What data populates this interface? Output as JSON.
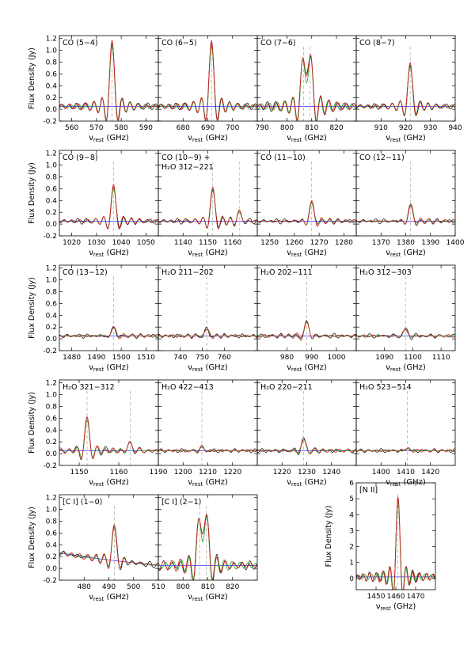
{
  "figure": {
    "ylabel": "Flux Density (Jy)",
    "xlabel_prefix": "ν",
    "xlabel_sub": "rest",
    "xlabel_unit": " (GHz)",
    "line_colors": {
      "black": "#000000",
      "red": "#d62020",
      "green": "#2fa02f",
      "blue": "#3333ff",
      "dash": "#999999"
    }
  },
  "chart_data": [
    {
      "id": "co54",
      "title": "CO (5−4)",
      "type": "line",
      "xlim": [
        555,
        595
      ],
      "ylim": [
        -0.2,
        1.25
      ],
      "xticks": [
        560,
        570,
        580,
        590
      ],
      "yticks": [
        -0.2,
        0.0,
        0.2,
        0.4,
        0.6,
        0.8,
        1.0,
        1.2
      ],
      "lines": [
        {
          "center": 576.3,
          "peak": 1.1
        }
      ],
      "continuum": [
        0.05,
        0.05
      ]
    },
    {
      "id": "co65",
      "title": "CO (6−5)",
      "type": "line",
      "xlim": [
        670,
        710
      ],
      "ylim": [
        -0.2,
        1.25
      ],
      "xticks": [
        680,
        690,
        700
      ],
      "yticks": [
        -0.2,
        0.0,
        0.2,
        0.4,
        0.6,
        0.8,
        1.0,
        1.2
      ],
      "lines": [
        {
          "center": 691.5,
          "peak": 1.1
        }
      ],
      "continuum": [
        0.05,
        0.05
      ]
    },
    {
      "id": "co76",
      "title": "CO (7−6)",
      "type": "line",
      "xlim": [
        788,
        828
      ],
      "ylim": [
        -0.2,
        1.25
      ],
      "xticks": [
        790,
        800,
        810,
        820
      ],
      "yticks": [
        -0.2,
        0.0,
        0.2,
        0.4,
        0.6,
        0.8,
        1.0,
        1.2
      ],
      "lines": [
        {
          "center": 806.7,
          "peak": 1.0
        },
        {
          "center": 809.3,
          "peak": 1.05
        }
      ],
      "continuum": [
        0.05,
        0.05
      ]
    },
    {
      "id": "co87",
      "title": "CO (8−7)",
      "type": "line",
      "xlim": [
        900,
        940
      ],
      "ylim": [
        -0.2,
        1.25
      ],
      "xticks": [
        910,
        920,
        930,
        940
      ],
      "yticks": [
        -0.2,
        0.0,
        0.2,
        0.4,
        0.6,
        0.8,
        1.0,
        1.2
      ],
      "lines": [
        {
          "center": 921.8,
          "peak": 0.72
        }
      ],
      "continuum": [
        0.05,
        0.05
      ]
    },
    {
      "id": "co98",
      "title": "CO (9−8)",
      "type": "line",
      "xlim": [
        1015,
        1055
      ],
      "ylim": [
        -0.2,
        1.25
      ],
      "xticks": [
        1020,
        1030,
        1040,
        1050
      ],
      "yticks": [
        -0.2,
        0.0,
        0.2,
        0.4,
        0.6,
        0.8,
        1.0,
        1.2
      ],
      "lines": [
        {
          "center": 1036.9,
          "peak": 0.6
        }
      ],
      "continuum": [
        0.05,
        0.05
      ]
    },
    {
      "id": "co109",
      "title": "CO (10−9) +",
      "title2": "H₂O 312−221",
      "type": "line",
      "xlim": [
        1130,
        1170
      ],
      "ylim": [
        -0.2,
        1.25
      ],
      "xticks": [
        1140,
        1150,
        1160
      ],
      "yticks": [
        -0.2,
        0.0,
        0.2,
        0.4,
        0.6,
        0.8,
        1.0,
        1.2
      ],
      "lines": [
        {
          "center": 1152.0,
          "peak": 0.55
        },
        {
          "center": 1162.9,
          "peak": 0.15
        }
      ],
      "continuum": [
        0.05,
        0.05
      ]
    },
    {
      "id": "co1110",
      "title": "CO (11−10)",
      "type": "line",
      "xlim": [
        1245,
        1285
      ],
      "ylim": [
        -0.2,
        1.25
      ],
      "xticks": [
        1250,
        1260,
        1270,
        1280
      ],
      "yticks": [
        -0.2,
        0.0,
        0.2,
        0.4,
        0.6,
        0.8,
        1.0,
        1.2
      ],
      "lines": [
        {
          "center": 1267.0,
          "peak": 0.33
        }
      ],
      "continuum": [
        0.05,
        0.05
      ]
    },
    {
      "id": "co1211",
      "title": "CO (12−11)",
      "type": "line",
      "xlim": [
        1360,
        1400
      ],
      "ylim": [
        -0.2,
        1.25
      ],
      "xticks": [
        1370,
        1380,
        1390,
        1400
      ],
      "yticks": [
        -0.2,
        0.0,
        0.2,
        0.4,
        0.6,
        0.8,
        1.0,
        1.2
      ],
      "lines": [
        {
          "center": 1382.0,
          "peak": 0.28
        }
      ],
      "continuum": [
        0.05,
        0.05
      ]
    },
    {
      "id": "co1312",
      "title": "CO (13−12)",
      "type": "line",
      "xlim": [
        1475,
        1515
      ],
      "ylim": [
        -0.2,
        1.25
      ],
      "xticks": [
        1480,
        1490,
        1500,
        1510
      ],
      "yticks": [
        -0.2,
        0.0,
        0.2,
        0.4,
        0.6,
        0.8,
        1.0,
        1.2
      ],
      "lines": [
        {
          "center": 1496.9,
          "peak": 0.15
        }
      ],
      "continuum": [
        0.05,
        0.05
      ]
    },
    {
      "id": "h2o211202",
      "title": "H₂O 211−202",
      "type": "line",
      "xlim": [
        730,
        775
      ],
      "ylim": [
        -0.2,
        1.25
      ],
      "xticks": [
        740,
        750,
        760
      ],
      "yticks": [
        -0.2,
        0.0,
        0.2,
        0.4,
        0.6,
        0.8,
        1.0,
        1.2
      ],
      "lines": [
        {
          "center": 752.0,
          "peak": 0.12
        }
      ],
      "continuum": [
        0.05,
        0.05
      ]
    },
    {
      "id": "h2o202111",
      "title": "H₂O 202−111",
      "type": "line",
      "xlim": [
        968,
        1008
      ],
      "ylim": [
        -0.2,
        1.25
      ],
      "xticks": [
        980,
        990,
        1000
      ],
      "yticks": [
        -0.2,
        0.0,
        0.2,
        0.4,
        0.6,
        0.8,
        1.0,
        1.2
      ],
      "lines": [
        {
          "center": 988.0,
          "peak": 0.25
        }
      ],
      "continuum": [
        0.05,
        0.05
      ]
    },
    {
      "id": "h2o312303",
      "title": "H₂O 312−303",
      "type": "line",
      "xlim": [
        1080,
        1115
      ],
      "ylim": [
        -0.2,
        1.25
      ],
      "xticks": [
        1090,
        1100,
        1110
      ],
      "yticks": [
        -0.2,
        0.0,
        0.2,
        0.4,
        0.6,
        0.8,
        1.0,
        1.2
      ],
      "lines": [
        {
          "center": 1097.4,
          "peak": 0.12
        }
      ],
      "continuum": [
        0.05,
        0.05
      ]
    },
    {
      "id": "h2o321312",
      "title": "H₂O 321−312",
      "type": "line",
      "xlim": [
        1145,
        1170
      ],
      "ylim": [
        -0.2,
        1.25
      ],
      "xticks": [
        1150,
        1160
      ],
      "yticks": [
        -0.2,
        0.0,
        0.2,
        0.4,
        0.6,
        0.8,
        1.0,
        1.2
      ],
      "lines": [
        {
          "center": 1152.0,
          "peak": 0.55
        },
        {
          "center": 1162.9,
          "peak": 0.15
        }
      ],
      "continuum": [
        0.05,
        0.05
      ]
    },
    {
      "id": "h2o422413",
      "title": "H₂O 422−413",
      "type": "line",
      "xlim": [
        1190,
        1230
      ],
      "ylim": [
        -0.2,
        1.25
      ],
      "xticks": [
        1190,
        1200,
        1210,
        1220
      ],
      "yticks": [
        -0.2,
        0.0,
        0.2,
        0.4,
        0.6,
        0.8,
        1.0,
        1.2
      ],
      "lines": [
        {
          "center": 1207.6,
          "peak": 0.06
        }
      ],
      "continuum": [
        0.05,
        0.05
      ]
    },
    {
      "id": "h2o220211",
      "title": "H₂O 220−211",
      "type": "line",
      "xlim": [
        1210,
        1250
      ],
      "ylim": [
        -0.2,
        1.25
      ],
      "xticks": [
        1220,
        1230,
        1240
      ],
      "yticks": [
        -0.2,
        0.0,
        0.2,
        0.4,
        0.6,
        0.8,
        1.0,
        1.2
      ],
      "lines": [
        {
          "center": 1228.8,
          "peak": 0.2
        }
      ],
      "continuum": [
        0.05,
        0.05
      ]
    },
    {
      "id": "h2o523514",
      "title": "H₂O 523−514",
      "type": "line",
      "xlim": [
        1390,
        1430
      ],
      "ylim": [
        -0.2,
        1.25
      ],
      "xticks": [
        1400,
        1410,
        1420
      ],
      "yticks": [
        -0.2,
        0.0,
        0.2,
        0.4,
        0.6,
        0.8,
        1.0,
        1.2
      ],
      "lines": [
        {
          "center": 1410.6,
          "peak": 0.04
        }
      ],
      "continuum": [
        0.05,
        0.05
      ]
    },
    {
      "id": "ci10",
      "title": "[C I] (1−0)",
      "type": "line",
      "xlim": [
        470,
        510
      ],
      "ylim": [
        -0.2,
        1.25
      ],
      "xticks": [
        480,
        490,
        500,
        510
      ],
      "yticks": [
        -0.2,
        0.0,
        0.2,
        0.4,
        0.6,
        0.8,
        1.0,
        1.2
      ],
      "lines": [
        {
          "center": 492.2,
          "peak": 0.6
        }
      ],
      "continuum": [
        0.27,
        0.05
      ]
    },
    {
      "id": "ci21",
      "title": "[C I] (2−1)",
      "type": "line",
      "xlim": [
        790,
        830
      ],
      "ylim": [
        -0.2,
        1.25
      ],
      "xticks": [
        800,
        810,
        820
      ],
      "yticks": [
        -0.2,
        0.0,
        0.2,
        0.4,
        0.6,
        0.8,
        1.0,
        1.2
      ],
      "lines": [
        {
          "center": 806.7,
          "peak": 1.0
        },
        {
          "center": 809.3,
          "peak": 1.05
        }
      ],
      "continuum": [
        0.05,
        0.05
      ]
    },
    {
      "id": "nii",
      "title": "[N II]",
      "type": "line",
      "xlim": [
        1440,
        1480
      ],
      "ylim": [
        -0.7,
        6.0
      ],
      "xticks": [
        1450,
        1460,
        1470
      ],
      "yticks": [
        0,
        1,
        2,
        3,
        4,
        5,
        6
      ],
      "lines": [
        {
          "center": 1461.1,
          "peak": 5.1
        }
      ],
      "continuum": [
        0.1,
        0.1
      ]
    }
  ]
}
